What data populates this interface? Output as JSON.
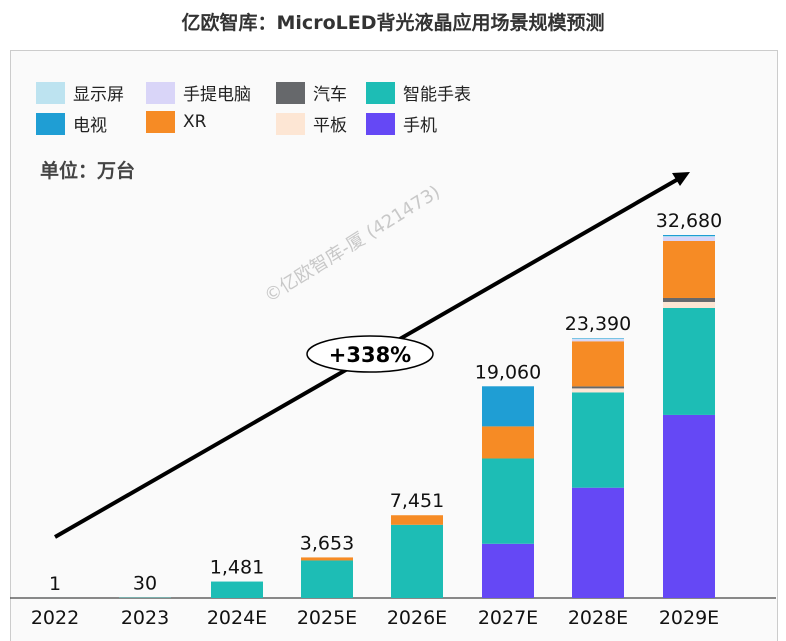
{
  "title": "亿欧智库：MicroLED背光液晶应用场景规模预测",
  "unit": "单位：万台",
  "growth_label": "+338%",
  "watermark": "©亿欧智库-厦 (421473)",
  "chart_data": {
    "type": "bar",
    "stacked": true,
    "title": "亿欧智库：MicroLED背光液晶应用场景规模预测",
    "ylabel": "万台",
    "categories": [
      "2022",
      "2023",
      "2024E",
      "2025E",
      "2026E",
      "2027E",
      "2028E",
      "2029E"
    ],
    "totals": [
      "1",
      "30",
      "1,481",
      "3,653",
      "7,451",
      "19,060",
      "23,390",
      "32,680"
    ],
    "total_values": [
      1,
      30,
      1481,
      3653,
      7451,
      19060,
      23390,
      32680
    ],
    "series": [
      {
        "name": "手机",
        "color": "#6548f5",
        "values": [
          0,
          0,
          0,
          0,
          0,
          4880,
          9930,
          16480
        ]
      },
      {
        "name": "智能手表",
        "color": "#1dbdb5",
        "values": [
          1,
          30,
          1481,
          3380,
          6590,
          7680,
          8580,
          9630
        ]
      },
      {
        "name": "平板",
        "color": "#fde6d4",
        "values": [
          0,
          0,
          0,
          0,
          0,
          0,
          360,
          540
        ]
      },
      {
        "name": "汽车",
        "color": "#66686b",
        "values": [
          0,
          0,
          0,
          0,
          0,
          0,
          180,
          360
        ]
      },
      {
        "name": "XR",
        "color": "#f68b25",
        "values": [
          0,
          0,
          0,
          273,
          861,
          2890,
          4060,
          5130
        ]
      },
      {
        "name": "手提电脑",
        "color": "#d9d5f8",
        "values": [
          0,
          0,
          0,
          0,
          0,
          0,
          180,
          360
        ]
      },
      {
        "name": "显示屏",
        "color": "#bde3f0",
        "values": [
          0,
          0,
          0,
          0,
          0,
          0,
          50,
          80
        ]
      },
      {
        "name": "电视",
        "color": "#1f9ed4",
        "values": [
          0,
          0,
          0,
          0,
          0,
          3610,
          50,
          100
        ]
      }
    ],
    "legend": [
      "显示屏",
      "手提电脑",
      "汽车",
      "智能手表",
      "电视",
      "XR",
      "平板",
      "手机"
    ],
    "legend_placement": "top-left",
    "ylim": [
      0,
      32680
    ],
    "grid": false
  }
}
